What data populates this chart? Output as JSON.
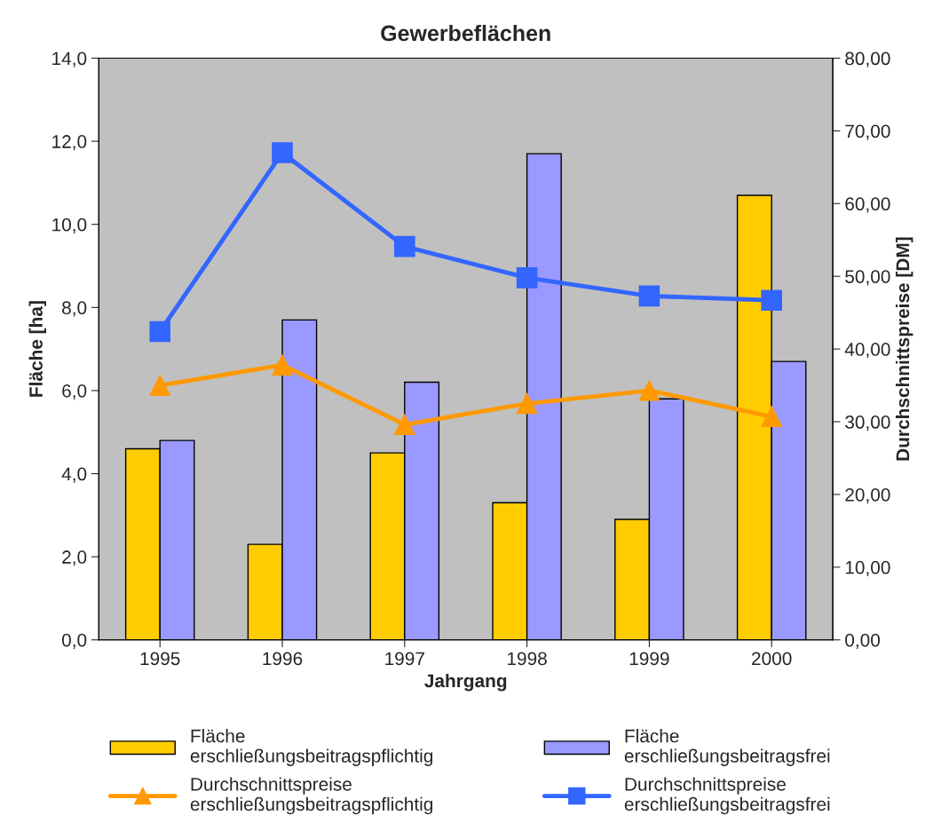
{
  "chart_data": {
    "type": "bar",
    "title": "Gewerbeflächen",
    "xlabel": "Jahrgang",
    "ylabel": "Fläche [ha]",
    "y2label": "Durchschnittspreise [DM]",
    "categories": [
      "1995",
      "1996",
      "1997",
      "1998",
      "1999",
      "2000"
    ],
    "series": [
      {
        "name": "Fläche\nerschließungsbeitragspflichtig",
        "color": "#ffcc00",
        "values": [
          4.6,
          2.3,
          4.5,
          3.3,
          2.9,
          10.7
        ]
      },
      {
        "name": "Fläche\nerschließungsbeitragsfrei",
        "color": "#9999ff",
        "values": [
          4.8,
          7.7,
          6.2,
          11.7,
          5.8,
          6.7
        ]
      },
      {
        "name": "Durchschnittspreise\nerschließungsbeitragspflichtig",
        "type": "line",
        "axis": "y2",
        "marker": "triangle",
        "color": "#ff9900",
        "values": [
          35.0,
          37.8,
          29.6,
          32.5,
          34.3,
          30.7
        ]
      },
      {
        "name": "Durchschnittspreise\nerschließungsbeitragsfrei",
        "type": "line",
        "axis": "y2",
        "marker": "square",
        "color": "#3366ff",
        "values": [
          42.4,
          67.0,
          54.1,
          49.8,
          47.3,
          46.7
        ]
      }
    ],
    "ylim": [
      0,
      14
    ],
    "yticks": [
      {
        "value": 0,
        "label": "0,0"
      },
      {
        "value": 2,
        "label": "2,0"
      },
      {
        "value": 4,
        "label": "4,0"
      },
      {
        "value": 6,
        "label": "6,0"
      },
      {
        "value": 8,
        "label": "8,0"
      },
      {
        "value": 10,
        "label": "10,0"
      },
      {
        "value": 12,
        "label": "12,0"
      },
      {
        "value": 14,
        "label": "14,0"
      }
    ],
    "y2lim": [
      0,
      80
    ],
    "y2ticks": [
      {
        "value": 0,
        "label": "0,00"
      },
      {
        "value": 10,
        "label": "10,00"
      },
      {
        "value": 20,
        "label": "20,00"
      },
      {
        "value": 30,
        "label": "30,00"
      },
      {
        "value": 40,
        "label": "40,00"
      },
      {
        "value": 50,
        "label": "50,00"
      },
      {
        "value": 60,
        "label": "60,00"
      },
      {
        "value": 70,
        "label": "70,00"
      },
      {
        "value": 80,
        "label": "80,00"
      }
    ],
    "grid": false,
    "legend": "bottom"
  }
}
